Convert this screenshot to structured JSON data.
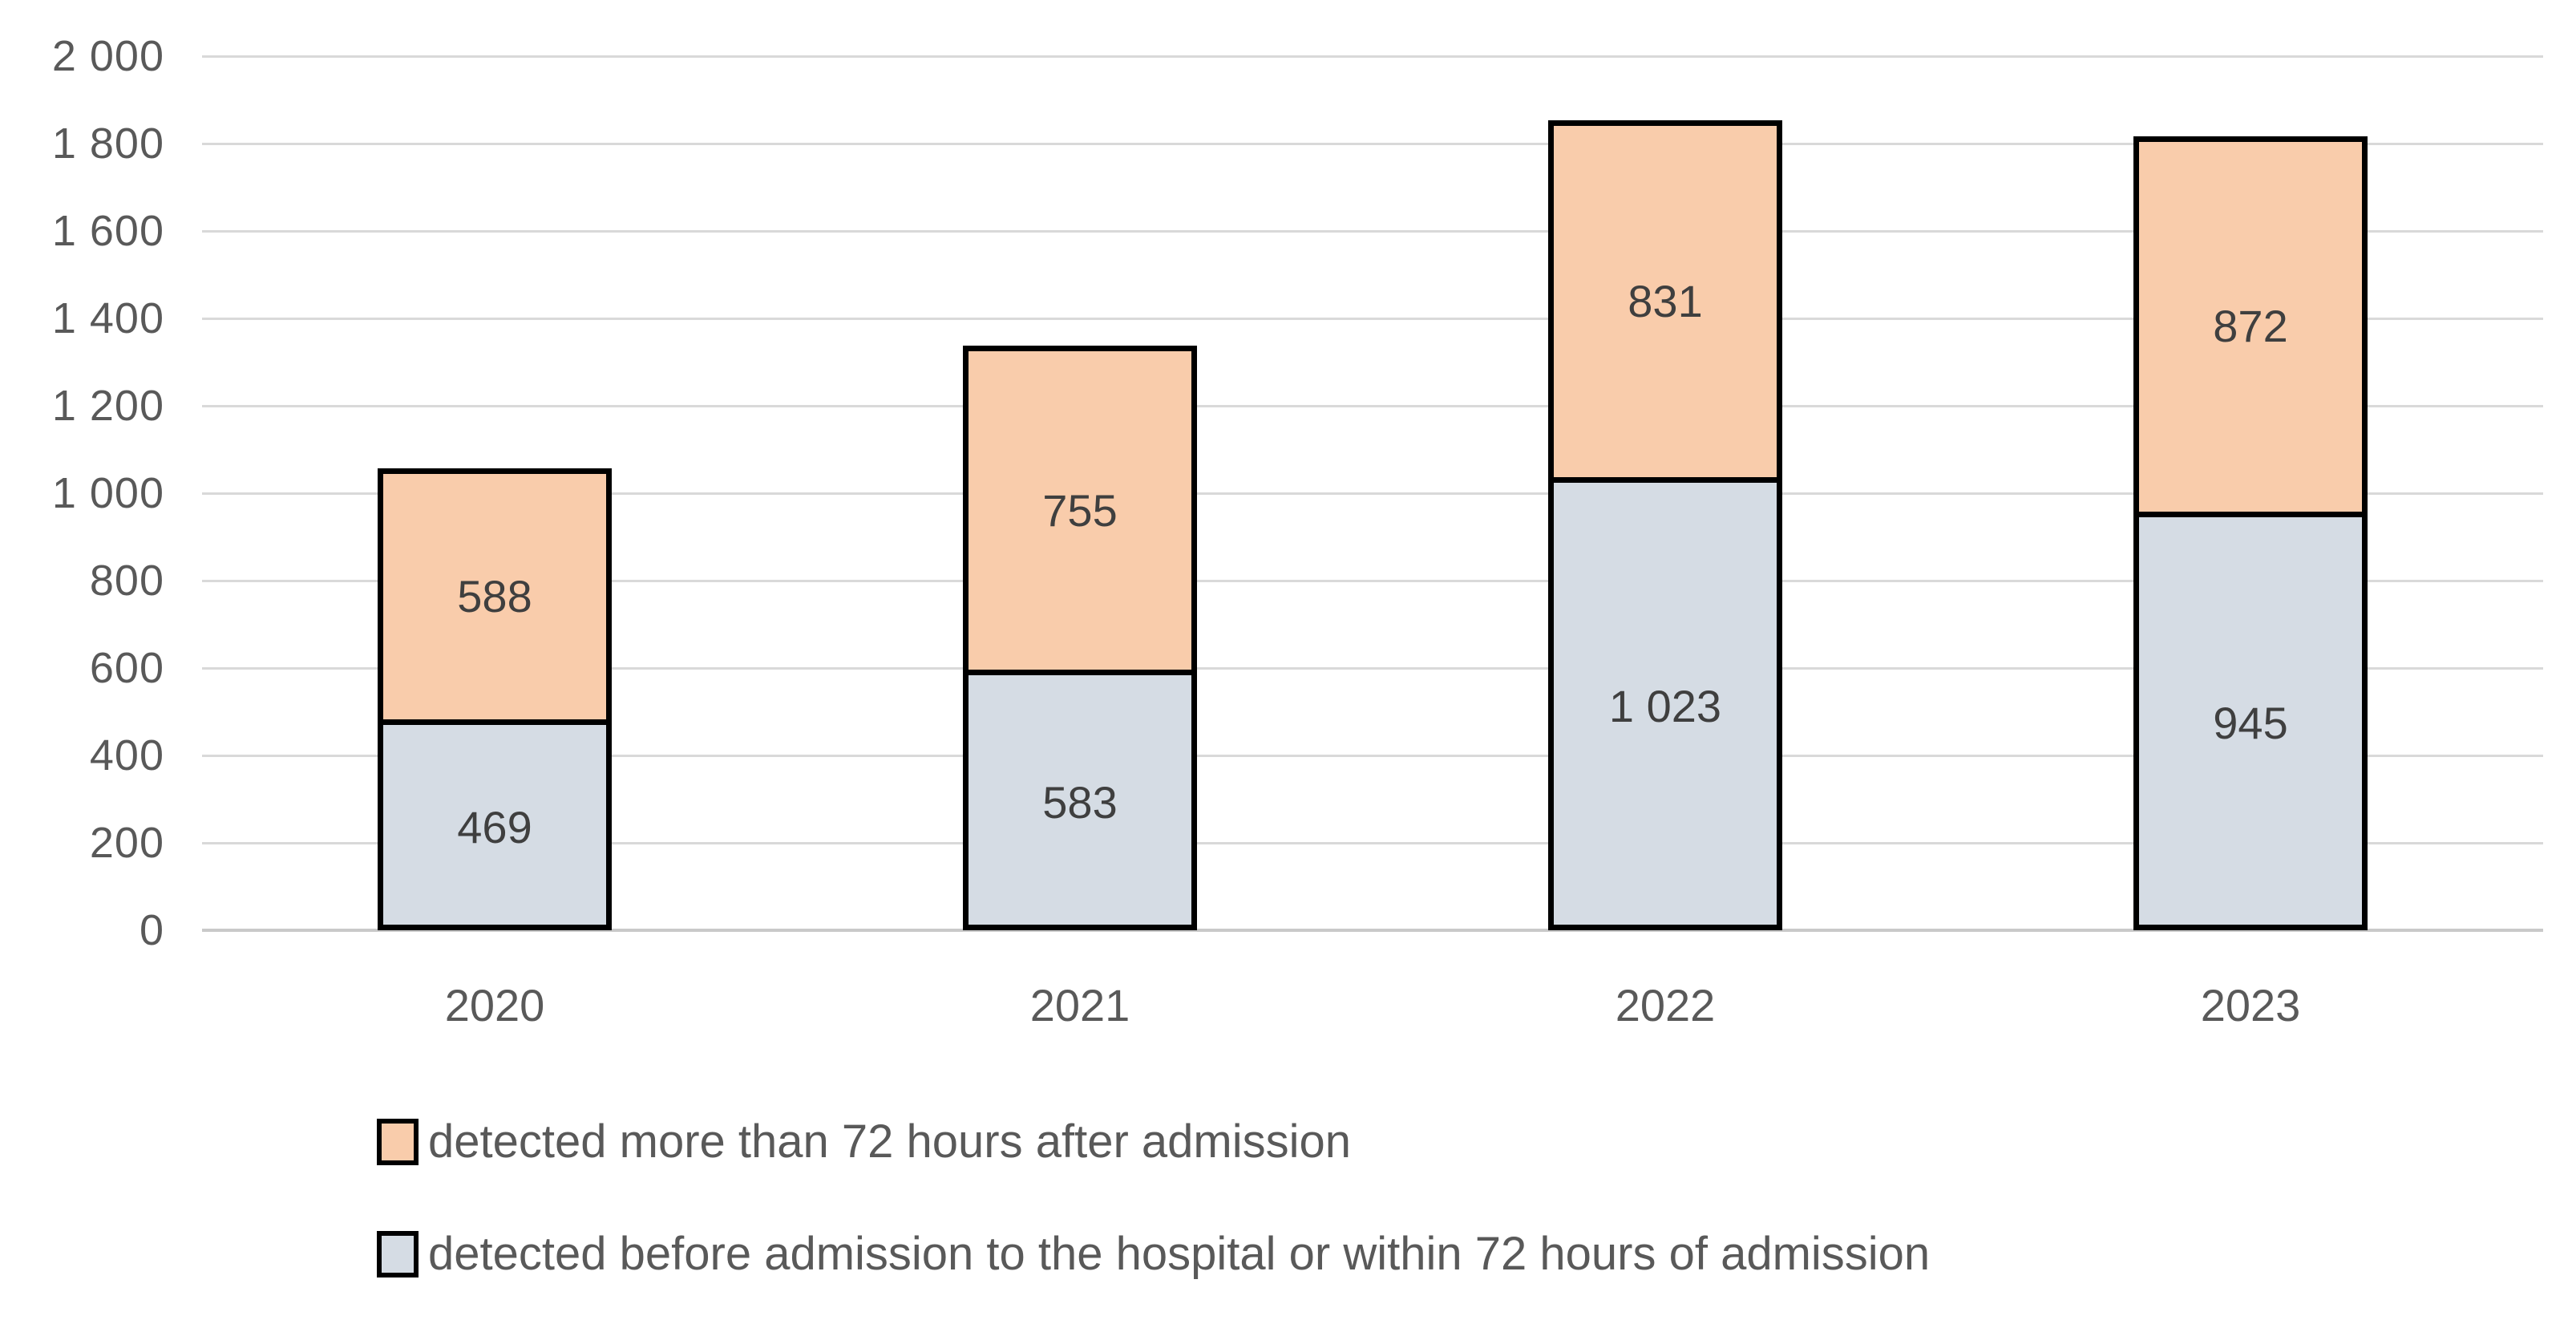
{
  "chart_data": {
    "type": "bar",
    "stacked": true,
    "title": "",
    "categories": [
      "2020",
      "2021",
      "2022",
      "2023"
    ],
    "series": [
      {
        "name": "detected before admission to the hospital or within 72 hours of admission",
        "color": "#D5DCE4",
        "values": [
          469,
          583,
          1023,
          945
        ],
        "labels": [
          "469",
          "583",
          "1 023",
          "945"
        ]
      },
      {
        "name": "detected more than 72 hours after admission",
        "color": "#F9CCAB",
        "values": [
          588,
          755,
          831,
          872
        ],
        "labels": [
          "588",
          "755",
          "831",
          "872"
        ]
      }
    ],
    "ylim": [
      0,
      2000
    ],
    "ytick_step": 200,
    "ytick_labels": [
      "0",
      "200",
      "400",
      "600",
      "800",
      "1 000",
      "1 200",
      "1 400",
      "1 600",
      "1 800",
      "2 000"
    ],
    "grid": true,
    "bar_border_color": "#000000",
    "legend_position": "bottom-left"
  },
  "legend": {
    "items": [
      {
        "label": "detected more than 72 hours after admission",
        "color": "#F9CCAB"
      },
      {
        "label": "detected before admission to the hospital or within 72 hours of admission",
        "color": "#D5DCE4"
      }
    ]
  },
  "colors": {
    "background": "#FFFFFF",
    "gridline": "#D9D9D9",
    "axis_line": "#C9C9C9",
    "tick_label": "#595959",
    "data_label": "#3F3F3F",
    "legend_text": "#595959"
  }
}
